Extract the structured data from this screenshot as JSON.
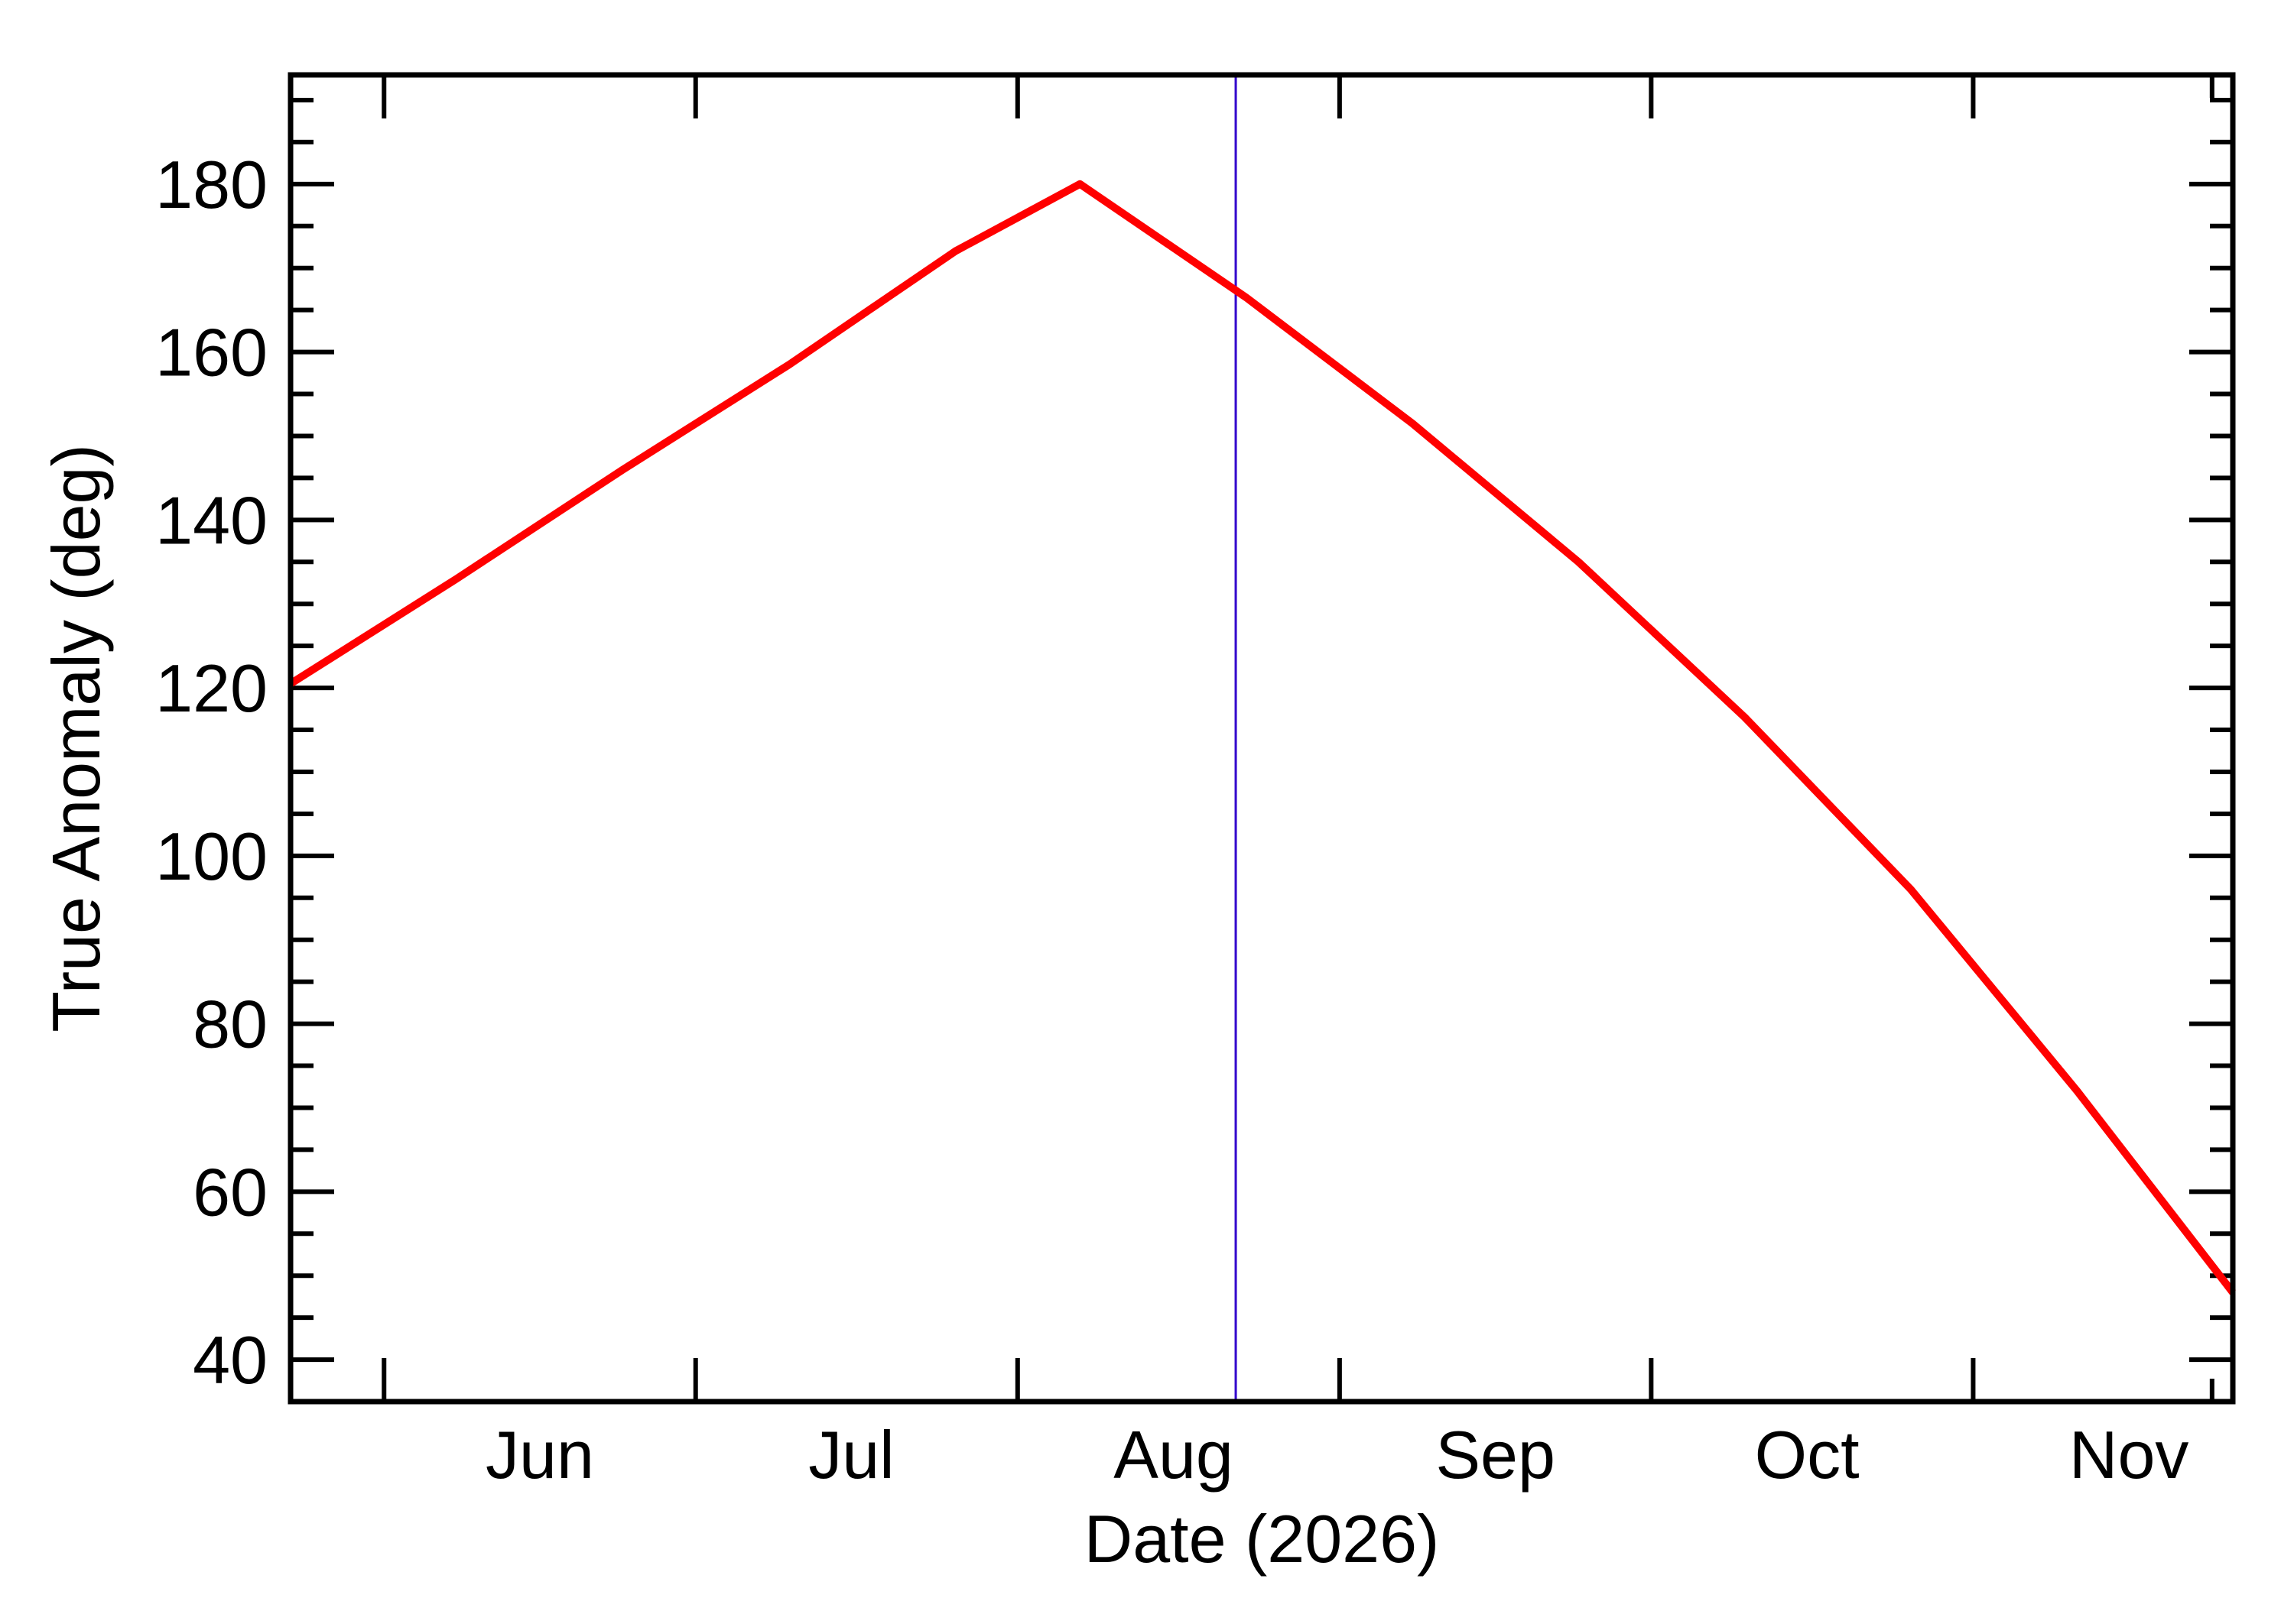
{
  "chart_data": {
    "type": "line",
    "xlabel": "Date (2026)",
    "ylabel": "True Anomaly (deg)",
    "xlim": [
      "2026-05-23",
      "2026-11-26"
    ],
    "ylim": [
      35,
      193
    ],
    "grid": false,
    "x_tick_labels": [
      "Jun",
      "Jul",
      "Aug",
      "Sep",
      "Oct",
      "Nov"
    ],
    "x_tick_dates": [
      "2026-06-01",
      "2026-07-01",
      "2026-08-01",
      "2026-09-01",
      "2026-10-01",
      "2026-11-01"
    ],
    "x_label_dates": [
      "2026-06-16",
      "2026-07-16",
      "2026-08-16",
      "2026-09-16",
      "2026-10-16",
      "2026-11-16"
    ],
    "x_minor_dates": [
      "2026-11-24"
    ],
    "y_ticks": [
      40,
      60,
      80,
      100,
      120,
      140,
      160,
      180
    ],
    "y_minor_step": 5,
    "series": [
      {
        "color": "#ff0000",
        "x": [
          "2026-05-23",
          "2026-06-08",
          "2026-06-24",
          "2026-07-10",
          "2026-07-26",
          "2026-08-07",
          "2026-08-23",
          "2026-09-08",
          "2026-09-24",
          "2026-10-10",
          "2026-10-26",
          "2026-11-11",
          "2026-11-26"
        ],
        "y": [
          120.5,
          133,
          146,
          158.5,
          172,
          180,
          166.5,
          151.5,
          135,
          116.5,
          96,
          72,
          48
        ]
      }
    ],
    "vertical_marker": {
      "x": "2026-08-22",
      "color": "#3300cc"
    }
  }
}
